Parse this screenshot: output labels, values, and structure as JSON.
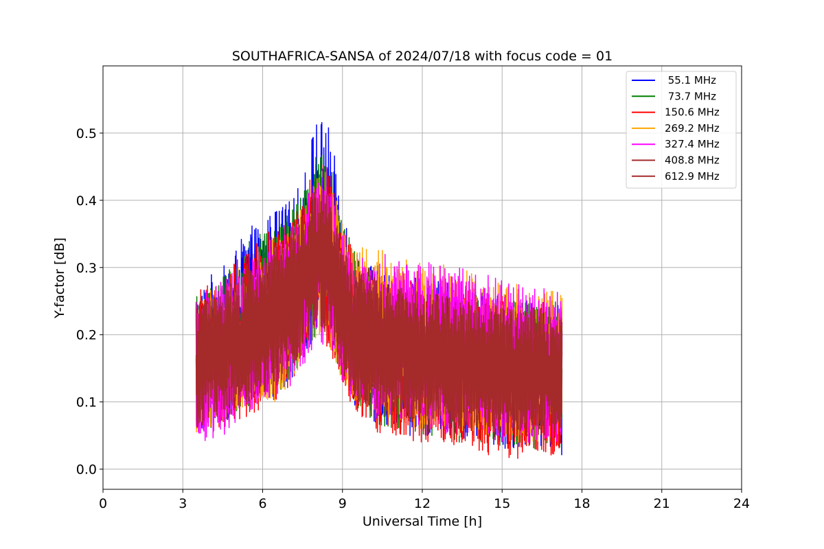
{
  "chart_data": {
    "type": "line",
    "title": "SOUTHAFRICA-SANSA of 2024/07/18 with focus code = 01",
    "xlabel": "Universal Time [h]",
    "ylabel": "Y-factor [dB]",
    "xlim": [
      0,
      24
    ],
    "ylim": [
      -0.03,
      0.6
    ],
    "xticks": [
      0,
      3,
      6,
      9,
      12,
      15,
      18,
      21,
      24
    ],
    "xtick_labels": [
      "0",
      "3",
      "6",
      "9",
      "12",
      "15",
      "18",
      "21",
      "24"
    ],
    "yticks": [
      0.0,
      0.1,
      0.2,
      0.3,
      0.4,
      0.5
    ],
    "ytick_labels": [
      "0.0",
      "0.1",
      "0.2",
      "0.3",
      "0.4",
      "0.5"
    ],
    "grid": true,
    "legend_position": "top-right",
    "x": [
      3.5,
      4.0,
      4.5,
      5.0,
      5.5,
      6.0,
      6.5,
      7.0,
      7.5,
      8.0,
      8.5,
      9.0,
      9.5,
      10.0,
      10.5,
      11.0,
      11.5,
      12.0,
      12.5,
      13.0,
      13.5,
      14.0,
      14.5,
      15.0,
      15.5,
      16.0,
      16.5,
      17.0,
      17.25
    ],
    "series": [
      {
        "name": " 55.1 MHz",
        "color": "#0000ff",
        "upper": [
          0.26,
          0.29,
          0.3,
          0.33,
          0.36,
          0.37,
          0.39,
          0.4,
          0.43,
          0.53,
          0.51,
          0.4,
          0.33,
          0.31,
          0.3,
          0.29,
          0.29,
          0.28,
          0.28,
          0.28,
          0.27,
          0.27,
          0.26,
          0.26,
          0.26,
          0.25,
          0.25,
          0.25,
          0.25
        ],
        "lower": [
          0.05,
          0.06,
          0.07,
          0.08,
          0.09,
          0.1,
          0.11,
          0.13,
          0.16,
          0.2,
          0.19,
          0.13,
          0.08,
          0.07,
          0.06,
          0.06,
          0.05,
          0.05,
          0.05,
          0.04,
          0.04,
          0.04,
          0.04,
          0.03,
          0.03,
          0.03,
          0.03,
          0.03,
          0.02
        ]
      },
      {
        "name": " 73.7 MHz",
        "color": "#008000",
        "upper": [
          0.26,
          0.28,
          0.29,
          0.32,
          0.34,
          0.36,
          0.37,
          0.38,
          0.41,
          0.48,
          0.46,
          0.37,
          0.32,
          0.3,
          0.29,
          0.28,
          0.28,
          0.28,
          0.27,
          0.27,
          0.27,
          0.26,
          0.26,
          0.26,
          0.25,
          0.25,
          0.25,
          0.25,
          0.24
        ],
        "lower": [
          0.05,
          0.06,
          0.07,
          0.08,
          0.09,
          0.1,
          0.11,
          0.13,
          0.16,
          0.2,
          0.19,
          0.13,
          0.08,
          0.07,
          0.06,
          0.06,
          0.05,
          0.05,
          0.05,
          0.04,
          0.04,
          0.04,
          0.04,
          0.03,
          0.03,
          0.03,
          0.03,
          0.03,
          0.03
        ]
      },
      {
        "name": "150.6 MHz",
        "color": "#ff0000",
        "upper": [
          0.26,
          0.28,
          0.29,
          0.31,
          0.33,
          0.35,
          0.36,
          0.37,
          0.4,
          0.46,
          0.45,
          0.36,
          0.32,
          0.3,
          0.29,
          0.28,
          0.28,
          0.28,
          0.27,
          0.27,
          0.27,
          0.26,
          0.26,
          0.26,
          0.25,
          0.25,
          0.25,
          0.24,
          0.24
        ],
        "lower": [
          0.04,
          0.05,
          0.06,
          0.07,
          0.08,
          0.09,
          0.1,
          0.12,
          0.15,
          0.19,
          0.18,
          0.12,
          0.07,
          0.06,
          0.05,
          0.05,
          0.04,
          0.04,
          0.04,
          0.04,
          0.03,
          0.03,
          0.02,
          0.02,
          0.01,
          0.02,
          0.02,
          0.02,
          0.02
        ]
      },
      {
        "name": "269.2 MHz",
        "color": "#ffa500",
        "upper": [
          0.25,
          0.27,
          0.28,
          0.3,
          0.32,
          0.34,
          0.35,
          0.36,
          0.39,
          0.45,
          0.44,
          0.37,
          0.34,
          0.33,
          0.33,
          0.32,
          0.31,
          0.31,
          0.31,
          0.3,
          0.3,
          0.29,
          0.29,
          0.28,
          0.28,
          0.27,
          0.27,
          0.27,
          0.26
        ],
        "lower": [
          0.05,
          0.06,
          0.07,
          0.08,
          0.09,
          0.1,
          0.1,
          0.12,
          0.15,
          0.19,
          0.18,
          0.13,
          0.09,
          0.08,
          0.07,
          0.07,
          0.06,
          0.06,
          0.06,
          0.05,
          0.05,
          0.05,
          0.05,
          0.04,
          0.04,
          0.04,
          0.04,
          0.04,
          0.04
        ]
      },
      {
        "name": "327.4 MHz",
        "color": "#ff00ff",
        "upper": [
          0.25,
          0.27,
          0.28,
          0.3,
          0.32,
          0.33,
          0.35,
          0.36,
          0.39,
          0.44,
          0.43,
          0.36,
          0.33,
          0.32,
          0.32,
          0.32,
          0.31,
          0.31,
          0.31,
          0.3,
          0.3,
          0.29,
          0.29,
          0.28,
          0.28,
          0.27,
          0.27,
          0.27,
          0.26
        ],
        "lower": [
          0.03,
          0.04,
          0.05,
          0.06,
          0.08,
          0.09,
          0.1,
          0.12,
          0.15,
          0.19,
          0.18,
          0.13,
          0.09,
          0.08,
          0.07,
          0.07,
          0.06,
          0.06,
          0.06,
          0.05,
          0.05,
          0.05,
          0.05,
          0.04,
          0.04,
          0.04,
          0.04,
          0.04,
          0.04
        ]
      },
      {
        "name": "408.8 MHz",
        "color": "#a52a2a",
        "upper": [
          0.24,
          0.26,
          0.27,
          0.29,
          0.31,
          0.32,
          0.34,
          0.35,
          0.38,
          0.42,
          0.41,
          0.34,
          0.3,
          0.29,
          0.28,
          0.27,
          0.27,
          0.26,
          0.26,
          0.26,
          0.25,
          0.25,
          0.25,
          0.24,
          0.24,
          0.24,
          0.24,
          0.23,
          0.23
        ],
        "lower": [
          0.06,
          0.07,
          0.08,
          0.09,
          0.1,
          0.11,
          0.12,
          0.14,
          0.17,
          0.21,
          0.2,
          0.14,
          0.1,
          0.09,
          0.08,
          0.08,
          0.07,
          0.07,
          0.07,
          0.06,
          0.06,
          0.06,
          0.06,
          0.05,
          0.05,
          0.05,
          0.05,
          0.05,
          0.05
        ]
      },
      {
        "name": "612.9 MHz",
        "color": "#a52a2a",
        "upper": [
          0.24,
          0.26,
          0.27,
          0.29,
          0.31,
          0.32,
          0.34,
          0.35,
          0.38,
          0.42,
          0.41,
          0.34,
          0.3,
          0.29,
          0.28,
          0.27,
          0.27,
          0.26,
          0.26,
          0.26,
          0.25,
          0.25,
          0.25,
          0.24,
          0.24,
          0.24,
          0.24,
          0.23,
          0.23
        ],
        "lower": [
          0.06,
          0.07,
          0.08,
          0.09,
          0.1,
          0.11,
          0.12,
          0.14,
          0.17,
          0.21,
          0.2,
          0.14,
          0.1,
          0.09,
          0.08,
          0.08,
          0.07,
          0.07,
          0.07,
          0.06,
          0.06,
          0.06,
          0.06,
          0.05,
          0.05,
          0.05,
          0.05,
          0.05,
          0.05
        ]
      }
    ]
  }
}
